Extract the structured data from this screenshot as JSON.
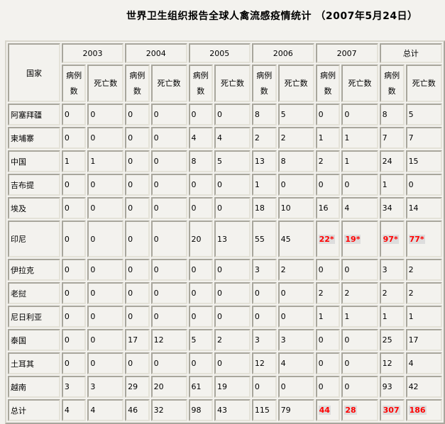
{
  "title": "世界卫生组织报告全球人禽流感疫情统计 （2007年5月24日）",
  "header": {
    "country": "国家",
    "years": [
      "2003",
      "2004",
      "2005",
      "2006",
      "2007",
      "总计"
    ],
    "cases": "病例数",
    "deaths": "死亡数"
  },
  "rows": [
    {
      "country": "阿塞拜疆",
      "values": [
        "0",
        "0",
        "0",
        "0",
        "0",
        "0",
        "8",
        "5",
        "0",
        "0",
        "8",
        "5"
      ]
    },
    {
      "country": "柬埔寨",
      "values": [
        "0",
        "0",
        "0",
        "0",
        "4",
        "4",
        "2",
        "2",
        "1",
        "1",
        "7",
        "7"
      ]
    },
    {
      "country": "中国",
      "values": [
        "1",
        "1",
        "0",
        "0",
        "8",
        "5",
        "13",
        "8",
        "2",
        "1",
        "24",
        "15"
      ]
    },
    {
      "country": "吉布提",
      "values": [
        "0",
        "0",
        "0",
        "0",
        "0",
        "0",
        "1",
        "0",
        "0",
        "0",
        "1",
        "0"
      ]
    },
    {
      "country": "埃及",
      "values": [
        "0",
        "0",
        "0",
        "0",
        "0",
        "0",
        "18",
        "10",
        "16",
        "4",
        "34",
        "14"
      ]
    },
    {
      "country": "印尼",
      "values": [
        "0",
        "0",
        "0",
        "0",
        "20",
        "13",
        "55",
        "45",
        "22*",
        "19*",
        "97*",
        "77*"
      ]
    },
    {
      "country": "伊拉克",
      "values": [
        "0",
        "0",
        "0",
        "0",
        "0",
        "0",
        "3",
        "2",
        "0",
        "0",
        "3",
        "2"
      ]
    },
    {
      "country": "老挝",
      "values": [
        "0",
        "0",
        "0",
        "0",
        "0",
        "0",
        "0",
        "0",
        "2",
        "2",
        "2",
        "2"
      ]
    },
    {
      "country": "尼日利亚",
      "values": [
        "0",
        "0",
        "0",
        "0",
        "0",
        "0",
        "0",
        "0",
        "1",
        "1",
        "1",
        "1"
      ]
    },
    {
      "country": "泰国",
      "values": [
        "0",
        "0",
        "17",
        "12",
        "5",
        "2",
        "3",
        "3",
        "0",
        "0",
        "25",
        "17"
      ]
    },
    {
      "country": "土耳其",
      "values": [
        "0",
        "0",
        "0",
        "0",
        "0",
        "0",
        "12",
        "4",
        "0",
        "0",
        "12",
        "4"
      ]
    },
    {
      "country": "越南",
      "values": [
        "3",
        "3",
        "29",
        "20",
        "61",
        "19",
        "0",
        "0",
        "0",
        "0",
        "93",
        "42"
      ]
    },
    {
      "country": "总计",
      "values": [
        "4",
        "4",
        "46",
        "32",
        "98",
        "43",
        "115",
        "79",
        "44",
        "28",
        "307",
        "186"
      ]
    }
  ],
  "highlight_color": "#ff0000"
}
